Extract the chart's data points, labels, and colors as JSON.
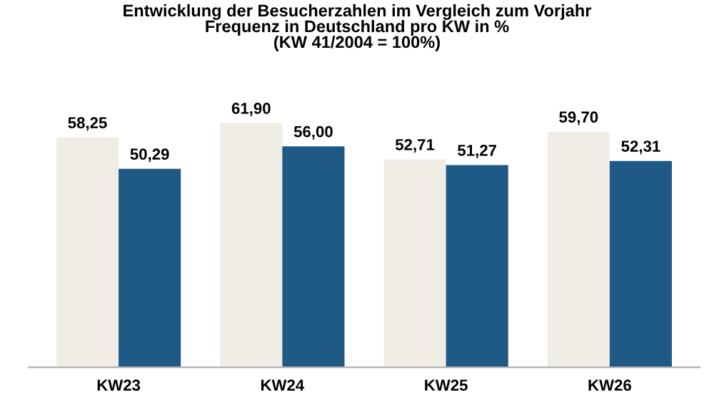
{
  "chart_data": {
    "type": "bar",
    "title": "Entwicklung der Besucherzahlen im Vergleich zum Vorjahr\nFrequenz in Deutschland pro KW in %\n(KW 41/2004 = 100%)",
    "categories": [
      "KW23",
      "KW24",
      "KW25",
      "KW26"
    ],
    "series": [
      {
        "color": "#efede6",
        "values": [
          58.25,
          61.9,
          52.71,
          59.7
        ],
        "value_labels": [
          "58,25",
          "61,90",
          "52,71",
          "59,70"
        ]
      },
      {
        "color": "#1f5a87",
        "values": [
          50.29,
          56.0,
          51.27,
          52.31
        ],
        "value_labels": [
          "50,29",
          "56,00",
          "51,27",
          "52,31"
        ]
      }
    ],
    "data_labels": false
  }
}
